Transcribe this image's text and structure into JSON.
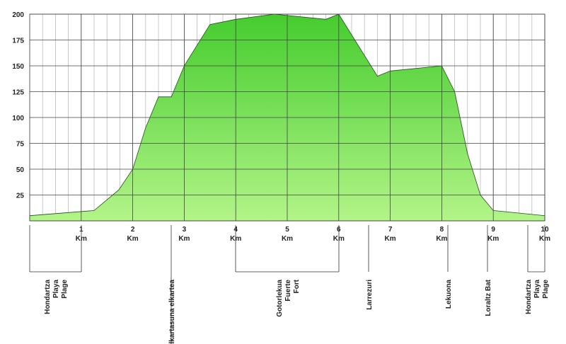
{
  "chart_data": {
    "type": "area",
    "x": [
      0,
      1.25,
      1.73,
      2,
      2.25,
      2.5,
      2.75,
      3,
      3.5,
      4,
      4.75,
      5.75,
      6,
      6.75,
      7,
      8,
      8.25,
      8.5,
      8.75,
      9,
      10
    ],
    "values": [
      5,
      10,
      30,
      50,
      90,
      120,
      120,
      150,
      190,
      195,
      200,
      195,
      200,
      140,
      145,
      150,
      125,
      65,
      25,
      10,
      5
    ],
    "color": "#5ad43f",
    "xlim": [
      0,
      10
    ],
    "xticks": [
      1,
      2,
      3,
      4,
      5,
      6,
      7,
      8,
      9,
      10
    ],
    "x_unit": "Km",
    "ylim": [
      0,
      200
    ],
    "yticks": [
      25,
      50,
      75,
      100,
      125,
      150,
      175,
      200
    ],
    "grid": true,
    "places": [
      [
        "Hondartza",
        "Playa",
        "Plage"
      ],
      [
        "Alkartasuna elkartea"
      ],
      [
        "Gotorlekua",
        "Fuerte",
        "Fort"
      ],
      [
        "Larrezuri"
      ],
      [
        "Lekuona"
      ],
      [
        "Loraltz Bat"
      ],
      [
        "Hondartza",
        "Playa",
        "Plage"
      ]
    ]
  }
}
